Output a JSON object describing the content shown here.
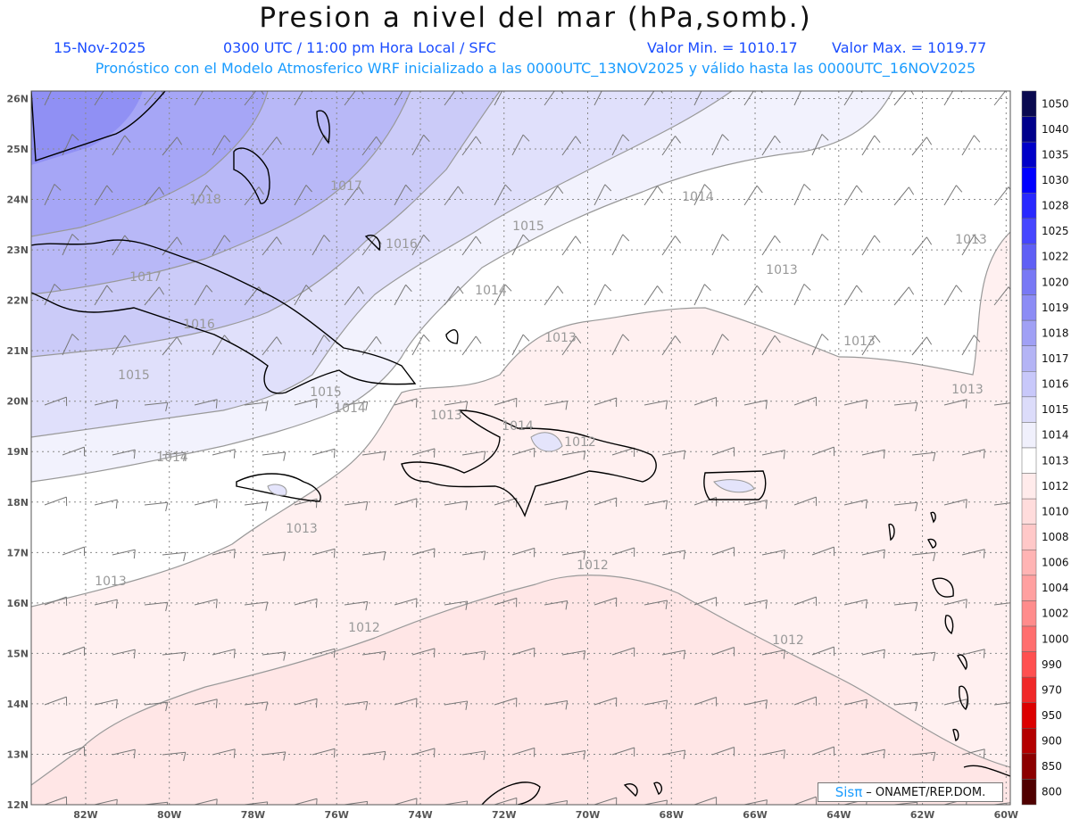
{
  "header": {
    "title": "Presion a nivel del mar (hPa,somb.)",
    "date": "15-Nov-2025",
    "time": "0300 UTC / 11:00 pm Hora Local / SFC",
    "min_label": "Valor Min. = 1010.17",
    "max_label": "Valor Max. = 1019.77",
    "model_line": "Pronóstico con el Modelo Atmosferico WRF inicializado a las 0000UTC_13NOV2025 y válido hasta las  0000UTC_16NOV2025"
  },
  "axes": {
    "lat_labels": [
      "26N",
      "25N",
      "24N",
      "23N",
      "22N",
      "21N",
      "20N",
      "19N",
      "18N",
      "17N",
      "16N",
      "15N",
      "14N",
      "13N",
      "12N"
    ],
    "lon_labels": [
      "82W",
      "80W",
      "78W",
      "76W",
      "74W",
      "72W",
      "70W",
      "68W",
      "66W",
      "64W",
      "62W",
      "60W"
    ]
  },
  "colorbar": {
    "labels": [
      "1050",
      "1040",
      "1035",
      "1030",
      "1028",
      "1025",
      "1022",
      "1020",
      "1019",
      "1018",
      "1017",
      "1016",
      "1015",
      "1014",
      "1013",
      "1012",
      "1010",
      "1008",
      "1006",
      "1004",
      "1002",
      "1000",
      "990",
      "970",
      "950",
      "900",
      "850",
      "800"
    ],
    "colors": [
      "#0a0a50",
      "#00008c",
      "#0000c8",
      "#0000ff",
      "#2828ff",
      "#4646ff",
      "#5f5ff5",
      "#7878f5",
      "#8c8cf5",
      "#a0a0f5",
      "#b4b4f5",
      "#c8c8fa",
      "#dcdcfa",
      "#f0f0fc",
      "#ffffff",
      "#ffebeb",
      "#ffdcdc",
      "#ffc8c8",
      "#ffb4b4",
      "#ffa0a0",
      "#ff8c8c",
      "#ff6e6e",
      "#ff5050",
      "#f02828",
      "#dc0000",
      "#b40000",
      "#8c0000",
      "#500000"
    ]
  },
  "contour_labels": [
    {
      "text": "1018"
    },
    {
      "text": "1017"
    },
    {
      "text": "1017"
    },
    {
      "text": "1016"
    },
    {
      "text": "1016"
    },
    {
      "text": "1015"
    },
    {
      "text": "1015"
    },
    {
      "text": "1015"
    },
    {
      "text": "1014"
    },
    {
      "text": "1014"
    },
    {
      "text": "1014"
    },
    {
      "text": "1014"
    },
    {
      "text": "1014"
    },
    {
      "text": "1013"
    },
    {
      "text": "1013"
    },
    {
      "text": "1013"
    },
    {
      "text": "1013"
    },
    {
      "text": "1013"
    },
    {
      "text": "1013"
    },
    {
      "text": "1013"
    },
    {
      "text": "1013"
    },
    {
      "text": "1012"
    },
    {
      "text": "1012"
    },
    {
      "text": "1012"
    },
    {
      "text": "1012"
    }
  ],
  "credit": {
    "brand": "Sisπ",
    "text": "– ONAMET/REP.DOM."
  },
  "colors": {
    "title": "#111111",
    "subtitle": "#1a4cff",
    "model_line": "#1a9cff",
    "coast": "#000000",
    "contour": "#888888",
    "grid": "#888888"
  }
}
